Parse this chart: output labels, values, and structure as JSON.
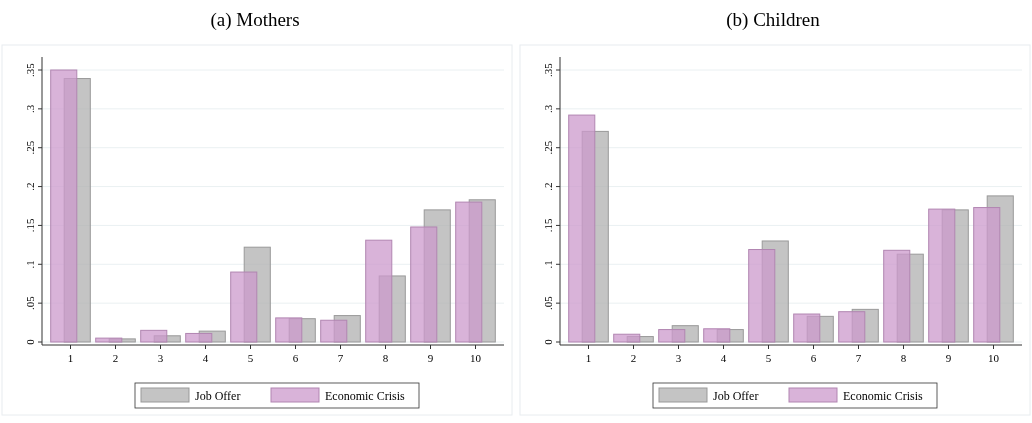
{
  "chart_data": [
    {
      "type": "bar",
      "title": "(a) Mothers",
      "categories": [
        "1",
        "2",
        "3",
        "4",
        "5",
        "6",
        "7",
        "8",
        "9",
        "10"
      ],
      "series": [
        {
          "name": "Job Offer",
          "color": "#b0b0b0",
          "values": [
            0.339,
            0.004,
            0.008,
            0.014,
            0.122,
            0.03,
            0.034,
            0.085,
            0.17,
            0.183
          ]
        },
        {
          "name": "Economic Crisis",
          "color": "#cc99cc",
          "values": [
            0.35,
            0.005,
            0.015,
            0.011,
            0.09,
            0.031,
            0.028,
            0.131,
            0.148,
            0.18
          ]
        }
      ],
      "ylim": [
        0,
        0.35
      ],
      "yticks": [
        {
          "value": 0,
          "label": "0"
        },
        {
          "value": 0.05,
          "label": ".05"
        },
        {
          "value": 0.1,
          "label": ".1"
        },
        {
          "value": 0.15,
          "label": ".15"
        },
        {
          "value": 0.2,
          "label": ".2"
        },
        {
          "value": 0.25,
          "label": ".25"
        },
        {
          "value": 0.3,
          "label": ".3"
        },
        {
          "value": 0.35,
          "label": ".35"
        }
      ],
      "grid": "y",
      "legend": "bottom"
    },
    {
      "type": "bar",
      "title": "(b) Children",
      "categories": [
        "1",
        "2",
        "3",
        "4",
        "5",
        "6",
        "7",
        "8",
        "9",
        "10"
      ],
      "series": [
        {
          "name": "Job Offer",
          "color": "#b0b0b0",
          "values": [
            0.271,
            0.007,
            0.021,
            0.016,
            0.13,
            0.033,
            0.042,
            0.113,
            0.17,
            0.188
          ]
        },
        {
          "name": "Economic Crisis",
          "color": "#cc99cc",
          "values": [
            0.292,
            0.01,
            0.016,
            0.017,
            0.119,
            0.036,
            0.039,
            0.118,
            0.171,
            0.173
          ]
        }
      ],
      "ylim": [
        0,
        0.35
      ],
      "yticks": [
        {
          "value": 0,
          "label": "0"
        },
        {
          "value": 0.05,
          "label": ".05"
        },
        {
          "value": 0.1,
          "label": ".1"
        },
        {
          "value": 0.15,
          "label": ".15"
        },
        {
          "value": 0.2,
          "label": ".2"
        },
        {
          "value": 0.25,
          "label": ".25"
        },
        {
          "value": 0.3,
          "label": ".3"
        },
        {
          "value": 0.35,
          "label": ".35"
        }
      ],
      "grid": "y",
      "legend": "bottom"
    }
  ]
}
